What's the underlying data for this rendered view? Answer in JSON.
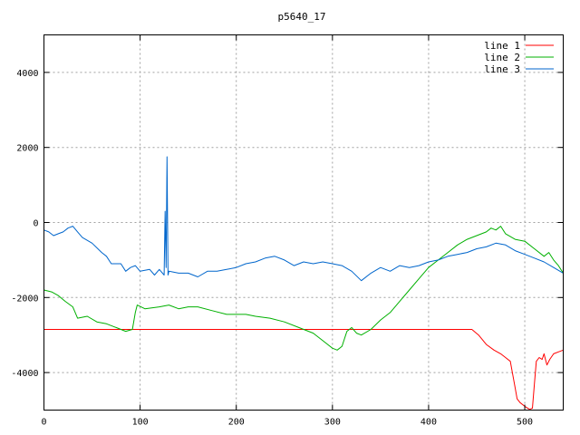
{
  "chart_data": {
    "type": "line",
    "title": "p5640_17",
    "xlabel": "",
    "ylabel": "",
    "xlim": [
      0,
      540
    ],
    "ylim": [
      -5000,
      5000
    ],
    "xticks": [
      0,
      100,
      200,
      300,
      400,
      500
    ],
    "yticks": [
      -4000,
      -2000,
      0,
      2000,
      4000
    ],
    "grid": true,
    "legend_position": "top-right",
    "series": [
      {
        "name": "line 1",
        "color": "#ff0000",
        "points": [
          [
            0,
            -2850
          ],
          [
            445,
            -2850
          ],
          [
            452,
            -3000
          ],
          [
            460,
            -3250
          ],
          [
            468,
            -3400
          ],
          [
            475,
            -3500
          ],
          [
            480,
            -3600
          ],
          [
            485,
            -3700
          ],
          [
            490,
            -4400
          ],
          [
            492,
            -4700
          ],
          [
            495,
            -4800
          ],
          [
            500,
            -4900
          ],
          [
            505,
            -4980
          ],
          [
            508,
            -4950
          ],
          [
            510,
            -4300
          ],
          [
            512,
            -3700
          ],
          [
            515,
            -3600
          ],
          [
            518,
            -3650
          ],
          [
            520,
            -3500
          ],
          [
            523,
            -3800
          ],
          [
            526,
            -3650
          ],
          [
            530,
            -3500
          ],
          [
            535,
            -3450
          ],
          [
            540,
            -3400
          ]
        ]
      },
      {
        "name": "line 2",
        "color": "#00b000",
        "points": [
          [
            0,
            -1800
          ],
          [
            8,
            -1850
          ],
          [
            15,
            -1950
          ],
          [
            22,
            -2100
          ],
          [
            30,
            -2250
          ],
          [
            35,
            -2550
          ],
          [
            45,
            -2500
          ],
          [
            55,
            -2650
          ],
          [
            65,
            -2700
          ],
          [
            75,
            -2800
          ],
          [
            85,
            -2900
          ],
          [
            92,
            -2850
          ],
          [
            95,
            -2400
          ],
          [
            97,
            -2200
          ],
          [
            105,
            -2300
          ],
          [
            120,
            -2250
          ],
          [
            130,
            -2200
          ],
          [
            140,
            -2300
          ],
          [
            150,
            -2250
          ],
          [
            160,
            -2250
          ],
          [
            175,
            -2350
          ],
          [
            190,
            -2450
          ],
          [
            200,
            -2450
          ],
          [
            210,
            -2450
          ],
          [
            220,
            -2500
          ],
          [
            235,
            -2550
          ],
          [
            250,
            -2650
          ],
          [
            265,
            -2800
          ],
          [
            280,
            -2950
          ],
          [
            290,
            -3150
          ],
          [
            300,
            -3350
          ],
          [
            305,
            -3400
          ],
          [
            310,
            -3300
          ],
          [
            315,
            -2900
          ],
          [
            320,
            -2800
          ],
          [
            325,
            -2950
          ],
          [
            330,
            -3000
          ],
          [
            340,
            -2850
          ],
          [
            350,
            -2600
          ],
          [
            360,
            -2400
          ],
          [
            370,
            -2100
          ],
          [
            380,
            -1800
          ],
          [
            390,
            -1500
          ],
          [
            400,
            -1200
          ],
          [
            410,
            -1000
          ],
          [
            420,
            -800
          ],
          [
            430,
            -600
          ],
          [
            440,
            -450
          ],
          [
            450,
            -350
          ],
          [
            460,
            -250
          ],
          [
            465,
            -150
          ],
          [
            470,
            -200
          ],
          [
            475,
            -100
          ],
          [
            480,
            -300
          ],
          [
            490,
            -450
          ],
          [
            500,
            -500
          ],
          [
            510,
            -700
          ],
          [
            520,
            -900
          ],
          [
            525,
            -800
          ],
          [
            530,
            -1000
          ],
          [
            535,
            -1150
          ],
          [
            540,
            -1350
          ]
        ]
      },
      {
        "name": "line 3",
        "color": "#0066cc",
        "points": [
          [
            0,
            -200
          ],
          [
            5,
            -250
          ],
          [
            10,
            -350
          ],
          [
            15,
            -300
          ],
          [
            20,
            -250
          ],
          [
            25,
            -150
          ],
          [
            30,
            -100
          ],
          [
            35,
            -250
          ],
          [
            40,
            -400
          ],
          [
            50,
            -550
          ],
          [
            60,
            -800
          ],
          [
            65,
            -900
          ],
          [
            70,
            -1100
          ],
          [
            80,
            -1100
          ],
          [
            85,
            -1300
          ],
          [
            90,
            -1200
          ],
          [
            95,
            -1150
          ],
          [
            100,
            -1300
          ],
          [
            110,
            -1250
          ],
          [
            115,
            -1400
          ],
          [
            120,
            -1250
          ],
          [
            125,
            -1400
          ],
          [
            126,
            300
          ],
          [
            127,
            -1200
          ],
          [
            128,
            1750
          ],
          [
            129,
            -1400
          ],
          [
            130,
            -1300
          ],
          [
            140,
            -1350
          ],
          [
            150,
            -1350
          ],
          [
            160,
            -1450
          ],
          [
            170,
            -1300
          ],
          [
            180,
            -1300
          ],
          [
            190,
            -1250
          ],
          [
            200,
            -1200
          ],
          [
            210,
            -1100
          ],
          [
            220,
            -1050
          ],
          [
            230,
            -950
          ],
          [
            240,
            -900
          ],
          [
            250,
            -1000
          ],
          [
            260,
            -1150
          ],
          [
            270,
            -1050
          ],
          [
            280,
            -1100
          ],
          [
            290,
            -1050
          ],
          [
            300,
            -1100
          ],
          [
            310,
            -1150
          ],
          [
            320,
            -1300
          ],
          [
            330,
            -1550
          ],
          [
            340,
            -1350
          ],
          [
            350,
            -1200
          ],
          [
            360,
            -1300
          ],
          [
            370,
            -1150
          ],
          [
            380,
            -1200
          ],
          [
            390,
            -1150
          ],
          [
            400,
            -1050
          ],
          [
            410,
            -1000
          ],
          [
            420,
            -900
          ],
          [
            430,
            -850
          ],
          [
            440,
            -800
          ],
          [
            450,
            -700
          ],
          [
            460,
            -650
          ],
          [
            470,
            -550
          ],
          [
            480,
            -600
          ],
          [
            490,
            -750
          ],
          [
            500,
            -850
          ],
          [
            510,
            -950
          ],
          [
            520,
            -1050
          ],
          [
            530,
            -1200
          ],
          [
            540,
            -1350
          ]
        ]
      }
    ]
  }
}
